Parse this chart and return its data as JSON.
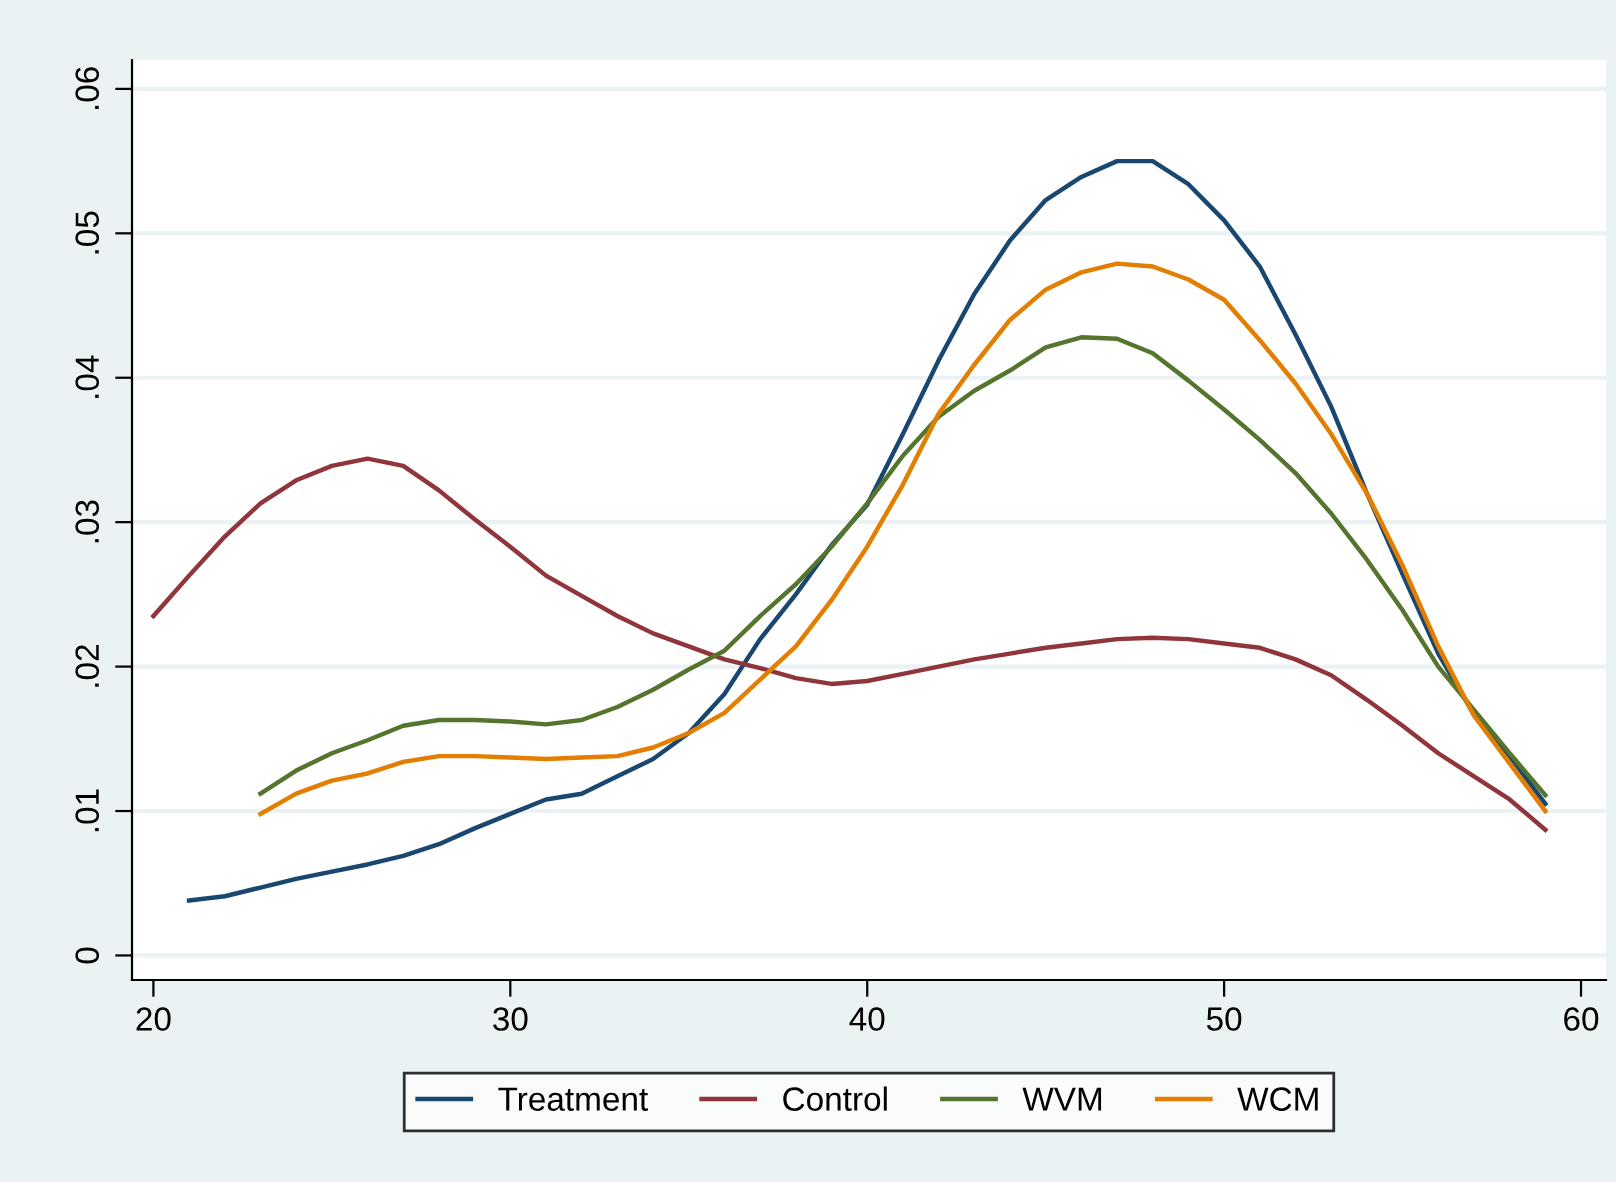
{
  "chart_data": {
    "type": "line",
    "x": [
      20,
      21,
      22,
      23,
      24,
      25,
      26,
      27,
      28,
      29,
      30,
      31,
      32,
      33,
      34,
      35,
      36,
      37,
      38,
      39,
      40,
      41,
      42,
      43,
      44,
      45,
      46,
      47,
      48,
      49,
      50,
      51,
      52,
      53,
      54,
      55,
      56,
      57,
      58,
      59
    ],
    "series": [
      {
        "name": "Treatment",
        "color": "#1a476f",
        "values": [
          null,
          0.0038,
          0.0041,
          0.0047,
          0.0053,
          0.0058,
          0.0063,
          0.0069,
          0.0077,
          0.0088,
          0.0098,
          0.0108,
          0.0112,
          0.0124,
          0.0136,
          0.0154,
          0.0181,
          0.0219,
          0.025,
          0.0284,
          0.0312,
          0.0361,
          0.0412,
          0.0458,
          0.0495,
          0.0523,
          0.0539,
          0.055,
          0.055,
          0.0534,
          0.0509,
          0.0477,
          0.043,
          0.038,
          0.032,
          0.0264,
          0.0209,
          0.0167,
          0.0138,
          0.0105
        ]
      },
      {
        "name": "Control",
        "color": "#90353b",
        "values": [
          0.0235,
          0.0263,
          0.029,
          0.0313,
          0.0329,
          0.0339,
          0.0344,
          0.0339,
          0.0322,
          0.0302,
          0.0283,
          0.0263,
          0.0249,
          0.0235,
          0.0223,
          0.0214,
          0.0205,
          0.0199,
          0.0192,
          0.0188,
          0.019,
          0.0195,
          0.02,
          0.0205,
          0.0209,
          0.0213,
          0.0216,
          0.0219,
          0.022,
          0.0219,
          0.0216,
          0.0213,
          0.0205,
          0.0194,
          0.0177,
          0.0159,
          0.014,
          0.0124,
          0.0108,
          0.0087
        ]
      },
      {
        "name": "WVM",
        "color": "#55752f",
        "values": [
          null,
          null,
          null,
          0.0112,
          0.0128,
          0.014,
          0.0149,
          0.0159,
          0.0163,
          0.0163,
          0.0162,
          0.016,
          0.0163,
          0.0172,
          0.0184,
          0.0198,
          0.0211,
          0.0235,
          0.0257,
          0.0283,
          0.0313,
          0.0346,
          0.0373,
          0.0391,
          0.0405,
          0.0421,
          0.0428,
          0.0427,
          0.0417,
          0.0398,
          0.0378,
          0.0357,
          0.0334,
          0.0306,
          0.0274,
          0.0239,
          0.02,
          0.017,
          0.014,
          0.0111
        ]
      },
      {
        "name": "WCM",
        "color": "#e37e00",
        "values": [
          null,
          null,
          null,
          0.0098,
          0.0112,
          0.0121,
          0.0126,
          0.0134,
          0.0138,
          0.0138,
          0.0137,
          0.0136,
          0.0137,
          0.0138,
          0.0144,
          0.0154,
          0.0168,
          0.0191,
          0.0214,
          0.0246,
          0.0283,
          0.0326,
          0.0375,
          0.0409,
          0.044,
          0.0461,
          0.0473,
          0.0479,
          0.0477,
          0.0468,
          0.0454,
          0.0426,
          0.0396,
          0.0361,
          0.032,
          0.027,
          0.0214,
          0.0166,
          0.0133,
          0.01
        ]
      }
    ],
    "xlim": [
      19.4,
      60.7
    ],
    "xticks": [
      20,
      30,
      40,
      50,
      60
    ],
    "ylim": [
      -0.0017,
      0.062
    ],
    "yticks": [
      {
        "value": 0,
        "label": "0"
      },
      {
        "value": 0.01,
        "label": ".01"
      },
      {
        "value": 0.02,
        "label": ".02"
      },
      {
        "value": 0.03,
        "label": ".03"
      },
      {
        "value": 0.04,
        "label": ".04"
      },
      {
        "value": 0.05,
        "label": ".05"
      },
      {
        "value": 0.06,
        "label": ".06"
      }
    ],
    "grid": "y",
    "legend": "bottom"
  }
}
